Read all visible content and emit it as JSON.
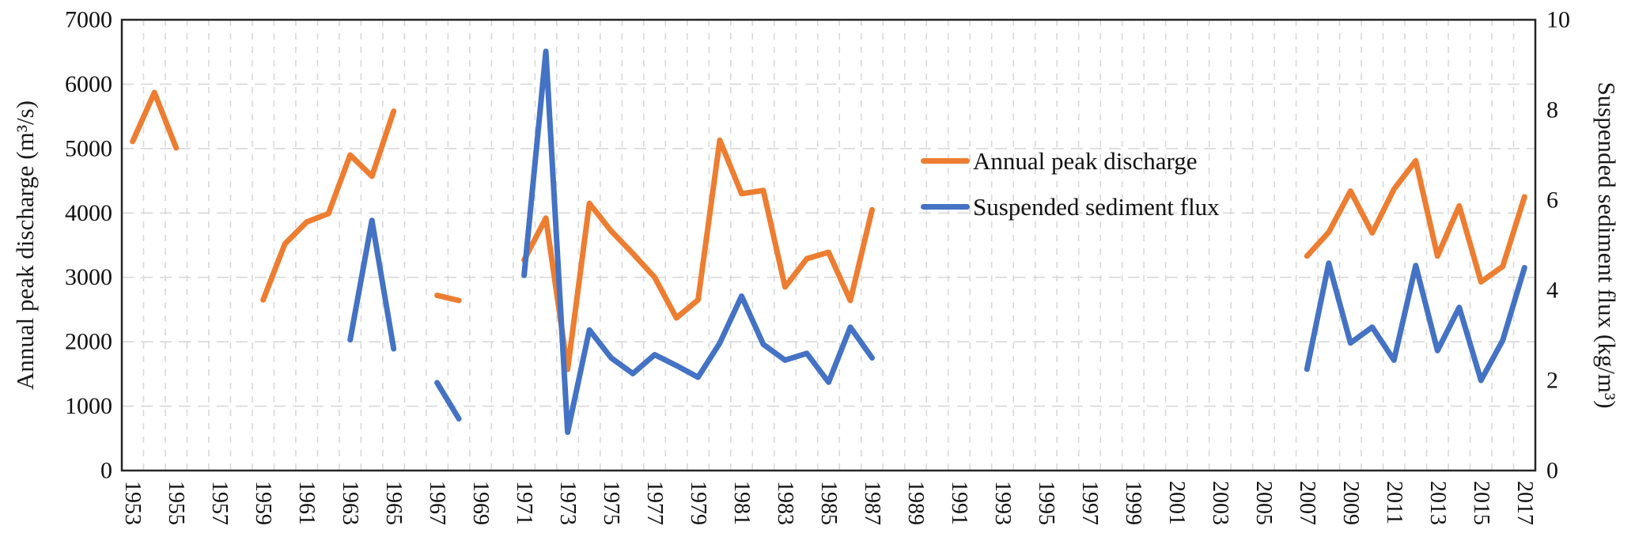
{
  "figure": {
    "left_axis": {
      "title": "Annual peak discharge (m³/s)",
      "min": 0,
      "max": 7000,
      "tick_labels": [
        "0",
        "1000",
        "2000",
        "3000",
        "4000",
        "5000",
        "6000",
        "7000"
      ]
    },
    "right_axis": {
      "title": "Suspended sediment flux (kg/m³)",
      "min": 0,
      "max": 10,
      "tick_labels": [
        "0",
        "2",
        "4",
        "6",
        "8",
        "10"
      ]
    },
    "x_axis": {
      "start_year": 1953,
      "end_year": 2017,
      "tick_labels": [
        "1953",
        "1955",
        "1957",
        "1959",
        "1961",
        "1963",
        "1965",
        "1967",
        "1969",
        "1971",
        "1973",
        "1975",
        "1977",
        "1979",
        "1981",
        "1983",
        "1985",
        "1987",
        "1989",
        "1991",
        "1993",
        "1995",
        "1997",
        "1999",
        "2001",
        "2003",
        "2005",
        "2007",
        "2009",
        "2011",
        "2013",
        "2015",
        "2017"
      ]
    },
    "legend": [
      {
        "label": "Annual peak discharge",
        "color": "#ED7D31"
      },
      {
        "label": "Suspended sediment flux",
        "color": "#4472C4"
      }
    ]
  },
  "chart_data": {
    "type": "line",
    "title": "",
    "xlabel": "",
    "ylabel_left": "Annual peak discharge (m³/s)",
    "ylabel_right": "Suspended sediment flux (kg/m³)",
    "x_range": [
      1953,
      2017
    ],
    "ylim_left": [
      0,
      7000
    ],
    "ylim_right": [
      0,
      10
    ],
    "grid": true,
    "legend_position": "upper-center-right",
    "series": [
      {
        "name": "Annual peak discharge",
        "axis": "left",
        "color": "#ED7D31",
        "units": "m³/s",
        "segments": [
          [
            [
              1953,
              5110
            ],
            [
              1954,
              5870
            ],
            [
              1955,
              5010
            ]
          ],
          [
            [
              1959,
              2650
            ],
            [
              1960,
              3520
            ],
            [
              1961,
              3860
            ],
            [
              1962,
              3990
            ],
            [
              1963,
              4900
            ],
            [
              1964,
              4570
            ],
            [
              1965,
              5580
            ]
          ],
          [
            [
              1967,
              2720
            ],
            [
              1968,
              2640
            ]
          ],
          [
            [
              1971,
              3270
            ],
            [
              1972,
              3920
            ],
            [
              1973,
              1570
            ],
            [
              1974,
              4150
            ],
            [
              1975,
              3720
            ],
            [
              1976,
              3370
            ],
            [
              1977,
              3000
            ],
            [
              1978,
              2370
            ],
            [
              1979,
              2650
            ],
            [
              1980,
              5130
            ],
            [
              1981,
              4300
            ],
            [
              1982,
              4350
            ],
            [
              1983,
              2850
            ],
            [
              1984,
              3290
            ],
            [
              1985,
              3390
            ],
            [
              1986,
              2640
            ],
            [
              1987,
              4050
            ]
          ],
          [
            [
              2007,
              3330
            ],
            [
              2008,
              3700
            ],
            [
              2009,
              4340
            ],
            [
              2010,
              3690
            ],
            [
              2011,
              4370
            ],
            [
              2012,
              4810
            ],
            [
              2013,
              3330
            ],
            [
              2014,
              4110
            ],
            [
              2015,
              2930
            ],
            [
              2016,
              3170
            ],
            [
              2017,
              4250
            ]
          ]
        ]
      },
      {
        "name": "Suspended sediment flux",
        "axis": "right",
        "color": "#4472C4",
        "units": "kg/m³",
        "segments": [
          [
            [
              1963,
              2.9
            ],
            [
              1964,
              5.55
            ],
            [
              1965,
              2.7
            ]
          ],
          [
            [
              1967,
              1.95
            ],
            [
              1968,
              1.15
            ]
          ],
          [
            [
              1971,
              4.33
            ],
            [
              1972,
              9.3
            ],
            [
              1973,
              0.85
            ],
            [
              1974,
              3.12
            ],
            [
              1975,
              2.5
            ],
            [
              1976,
              2.15
            ],
            [
              1977,
              2.57
            ],
            [
              1978,
              2.33
            ],
            [
              1979,
              2.07
            ],
            [
              1980,
              2.83
            ],
            [
              1981,
              3.87
            ],
            [
              1982,
              2.8
            ],
            [
              1983,
              2.45
            ],
            [
              1984,
              2.6
            ],
            [
              1985,
              1.96
            ],
            [
              1986,
              3.18
            ],
            [
              1987,
              2.5
            ]
          ],
          [
            [
              2007,
              2.25
            ],
            [
              2008,
              4.6
            ],
            [
              2009,
              2.83
            ],
            [
              2010,
              3.18
            ],
            [
              2011,
              2.45
            ],
            [
              2012,
              4.55
            ],
            [
              2013,
              2.66
            ],
            [
              2014,
              3.62
            ],
            [
              2015,
              2.0
            ],
            [
              2016,
              2.89
            ],
            [
              2017,
              4.5
            ]
          ]
        ]
      }
    ]
  }
}
